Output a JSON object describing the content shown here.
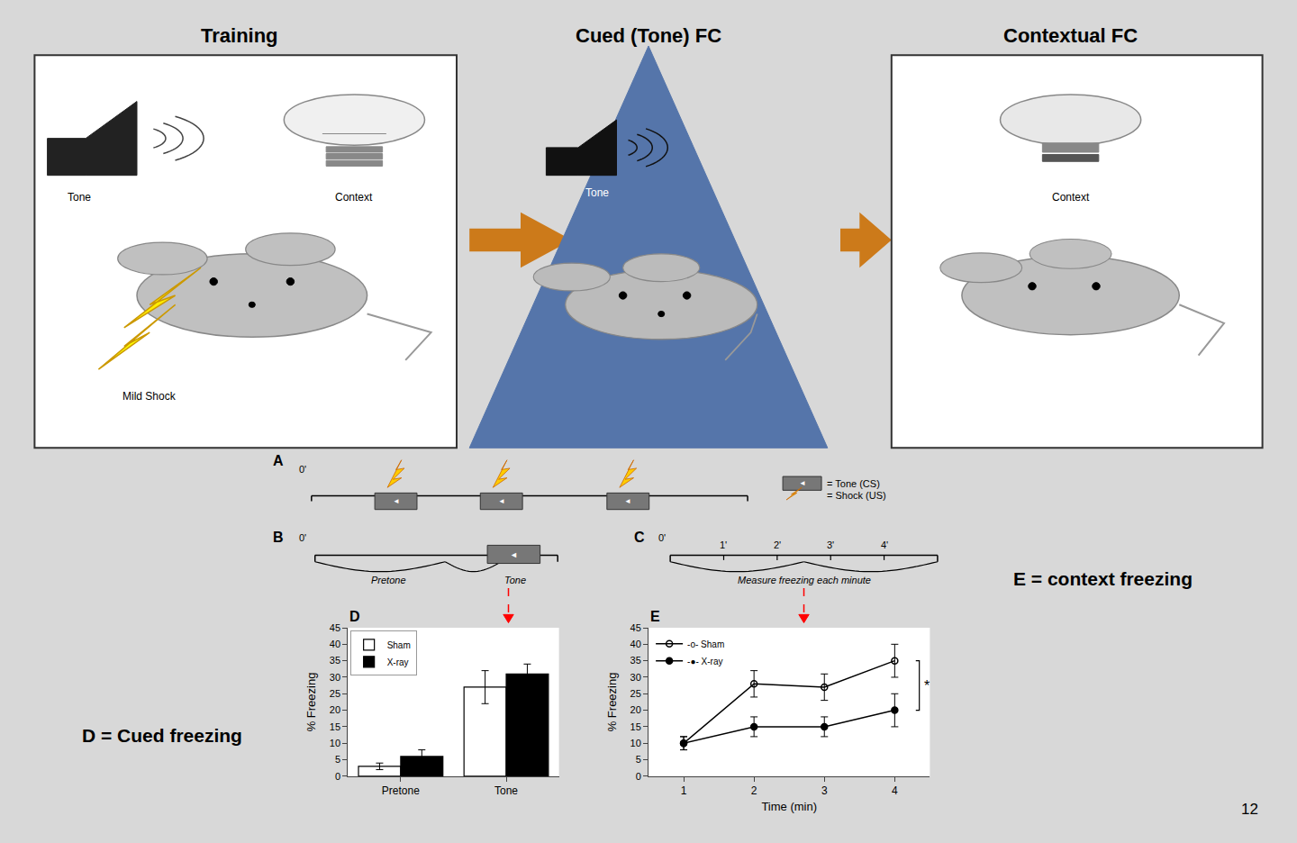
{
  "chart_data": [
    {
      "type": "bar",
      "ylabel": "% Freezing",
      "categories": [
        "Pretone",
        "Tone"
      ],
      "series": [
        {
          "name": "Sham",
          "color": "white",
          "values": [
            3,
            27
          ],
          "errors": [
            1,
            5
          ]
        },
        {
          "name": "X-ray",
          "color": "black",
          "values": [
            6,
            31
          ],
          "errors": [
            2,
            3
          ]
        }
      ],
      "ylim": [
        0,
        45
      ],
      "yticks": [
        0,
        5,
        10,
        15,
        20,
        25,
        30,
        35,
        40,
        45
      ],
      "grid": false,
      "legend": "upper left",
      "annotations": [
        "Training",
        "Cued (Tone) FC",
        "Contextual FC",
        "Tone",
        "Context",
        "Mild Shock",
        "Tone",
        "Context",
        "A",
        "0'",
        "◄",
        "◄",
        "◄",
        "◄",
        "= Tone (CS)",
        "= Shock (US)",
        "B",
        "0'",
        "Pretone",
        "Tone",
        "◄",
        "C",
        "0'",
        "1'",
        "2'",
        "3'",
        "4'",
        "Measure freezing each minute",
        "D",
        "D = Cued freezing",
        "12"
      ]
    },
    {
      "type": "line",
      "xlabel": "Time (min)",
      "ylabel": "% Freezing",
      "x": [
        1,
        2,
        3,
        4
      ],
      "series": [
        {
          "name": "-o- Sham",
          "color": "black",
          "marker": "circle-open",
          "values": [
            10,
            28,
            27,
            35
          ],
          "errors": [
            2,
            4,
            4,
            5
          ]
        },
        {
          "name": "-●- X-ray",
          "color": "black",
          "marker": "circle",
          "values": [
            10,
            15,
            15,
            20
          ],
          "errors": [
            2,
            3,
            3,
            5
          ]
        }
      ],
      "xlim": [
        0.5,
        4.5
      ],
      "xticks": [
        1,
        2,
        3,
        4
      ],
      "ylim": [
        0,
        45
      ],
      "yticks": [
        0,
        5,
        10,
        15,
        20,
        25,
        30,
        35,
        40,
        45
      ],
      "grid": false,
      "legend": "upper left",
      "annotations": [
        "E",
        "*",
        "E = context freezing"
      ]
    }
  ]
}
